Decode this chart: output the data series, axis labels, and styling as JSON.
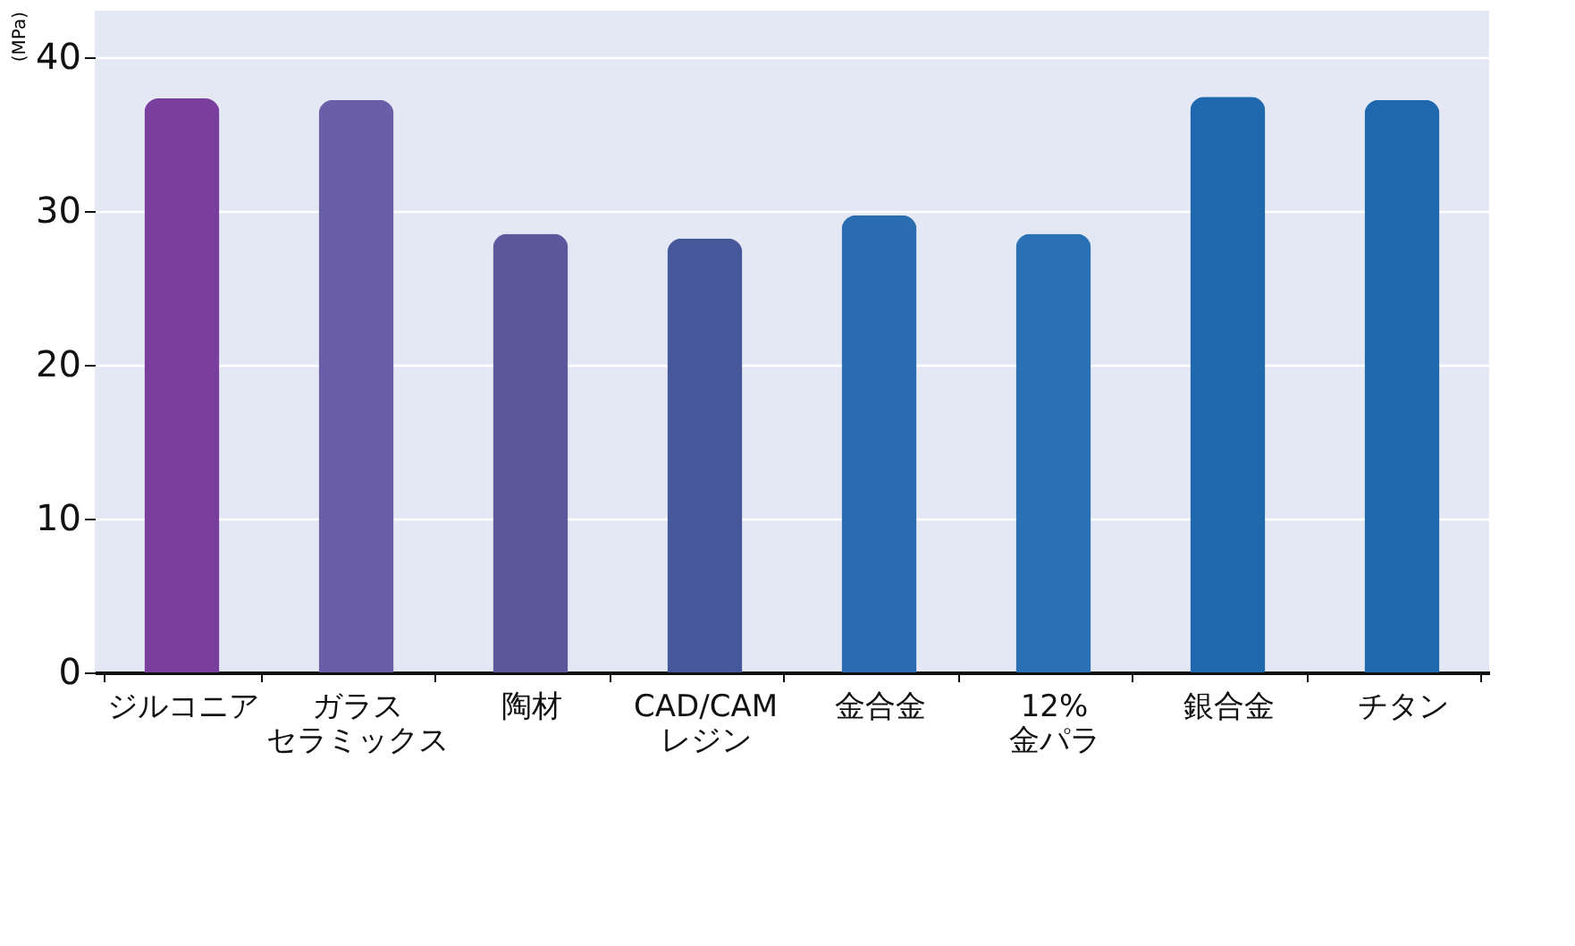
{
  "chart_data": {
    "type": "bar",
    "ylabel": "(MPa)",
    "categories": [
      "ジルコニア",
      "ガラスセラミックス",
      "陶材",
      "CAD/CAM\nレジン",
      "金合金",
      "12%\n金パラ",
      "銀合金",
      "チタン"
    ],
    "values": [
      37.3,
      37.2,
      28.5,
      28.2,
      29.7,
      28.5,
      37.4,
      37.2
    ],
    "colors": [
      "#7a3f9c",
      "#6a5ea8",
      "#5a579c",
      "#47589a",
      "#2a6cb0",
      "#2a70b5",
      "#1f68ad",
      "#1f68ad"
    ],
    "ylim": [
      0,
      43
    ],
    "yticks": [
      0,
      10,
      20,
      30,
      40
    ],
    "grid": "y"
  }
}
